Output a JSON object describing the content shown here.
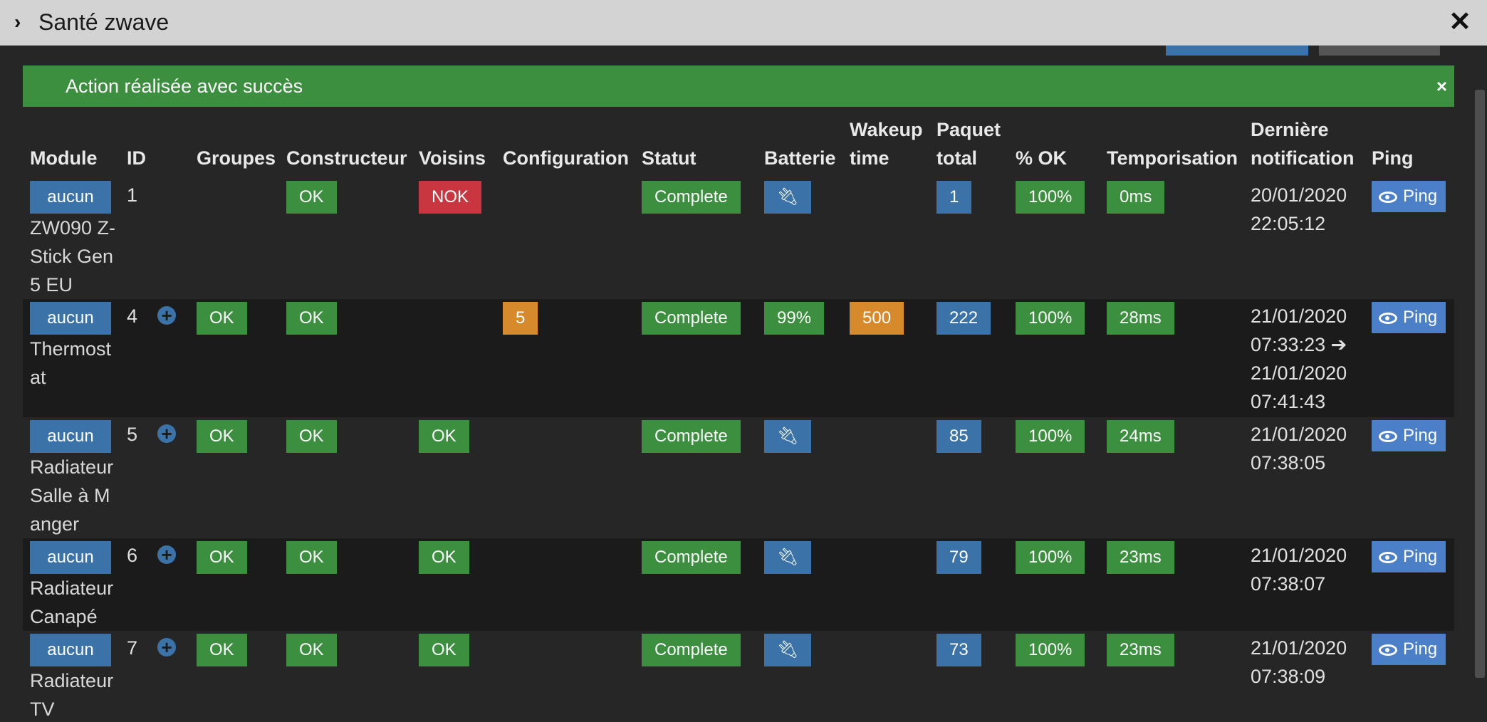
{
  "window": {
    "title": "Santé zwave"
  },
  "alert": {
    "message": "Action réalisée avec succès",
    "close": "×"
  },
  "columns": {
    "module": "Module",
    "id": "ID",
    "groups": "Groupes",
    "manufacturer": "Constructeur",
    "neighbors": "Voisins",
    "config": "Configuration",
    "status": "Statut",
    "battery": "Batterie",
    "wakeup_1": "Wakeup",
    "wakeup_2": "time",
    "packets_1": "Paquet",
    "packets_2": "total",
    "ok_pct": "% OK",
    "timing": "Temporisation",
    "last_notif_1": "Dernière",
    "last_notif_2": "notification",
    "ping": "Ping"
  },
  "rows": [
    {
      "module_btn": "aucun",
      "module_name": "ZW090 Z-Stick Gen5 EU",
      "id": "1",
      "groups": "",
      "manufacturer": "OK",
      "neighbors": "NOK",
      "config": "",
      "status": "Complete",
      "battery": "plug-icon",
      "wakeup": "",
      "packets": "1",
      "ok_pct": "100%",
      "timing": "0ms",
      "notif_1": "20/01/2020",
      "notif_2": "22:05:12",
      "notif_3": "",
      "notif_4": "",
      "ping": "Ping"
    },
    {
      "module_btn": "aucun",
      "module_name": "Thermostat",
      "id": "4",
      "groups": "OK",
      "manufacturer": "OK",
      "neighbors": "",
      "config": "5",
      "status": "Complete",
      "battery": "99%",
      "wakeup": "500",
      "packets": "222",
      "ok_pct": "100%",
      "timing": "28ms",
      "notif_1": "21/01/2020",
      "notif_2": "07:33:23 ➔",
      "notif_3": "21/01/2020",
      "notif_4": "07:41:43",
      "ping": "Ping"
    },
    {
      "module_btn": "aucun",
      "module_name": "Radiateur Salle à Manger",
      "id": "5",
      "groups": "OK",
      "manufacturer": "OK",
      "neighbors": "OK",
      "config": "",
      "status": "Complete",
      "battery": "plug-icon",
      "wakeup": "",
      "packets": "85",
      "ok_pct": "100%",
      "timing": "24ms",
      "notif_1": "21/01/2020",
      "notif_2": "07:38:05",
      "notif_3": "",
      "notif_4": "",
      "ping": "Ping"
    },
    {
      "module_btn": "aucun",
      "module_name": "Radiateur Canapé",
      "id": "6",
      "groups": "OK",
      "manufacturer": "OK",
      "neighbors": "OK",
      "config": "",
      "status": "Complete",
      "battery": "plug-icon",
      "wakeup": "",
      "packets": "79",
      "ok_pct": "100%",
      "timing": "23ms",
      "notif_1": "21/01/2020",
      "notif_2": "07:38:07",
      "notif_3": "",
      "notif_4": "",
      "ping": "Ping"
    },
    {
      "module_btn": "aucun",
      "module_name": "Radiateur TV",
      "id": "7",
      "groups": "OK",
      "manufacturer": "OK",
      "neighbors": "OK",
      "config": "",
      "status": "Complete",
      "battery": "plug-icon",
      "wakeup": "",
      "packets": "73",
      "ok_pct": "100%",
      "timing": "23ms",
      "notif_1": "21/01/2020",
      "notif_2": "07:38:09",
      "notif_3": "",
      "notif_4": "",
      "ping": "Ping"
    }
  ],
  "colors": {
    "green": "#3b8f3f",
    "red": "#c9363f",
    "blue": "#3b73a8",
    "orange": "#d78a2c",
    "ping": "#4b7fc7",
    "titlebar": "#d3d3d3",
    "background": "#262626"
  }
}
